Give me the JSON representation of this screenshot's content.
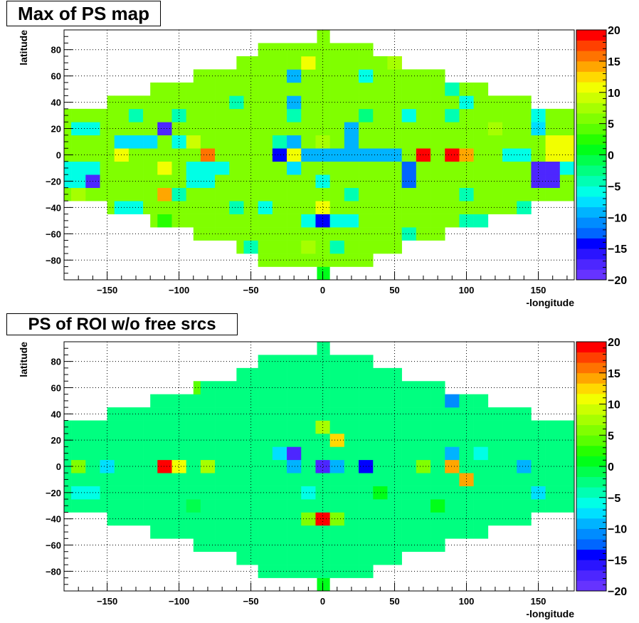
{
  "chart_data": [
    {
      "type": "heatmap",
      "title": "Max of PS map",
      "xlabel": "-longitude",
      "ylabel": "latitude",
      "xlim": [
        -180,
        175
      ],
      "ylim": [
        -95,
        95
      ],
      "x_ticks": [
        -150,
        -100,
        -50,
        0,
        50,
        100,
        150
      ],
      "y_ticks": [
        -80,
        -60,
        -40,
        -20,
        0,
        20,
        40,
        60,
        80
      ],
      "grid": true,
      "colorbar": {
        "min": -20,
        "max": 20,
        "ticks": [
          -20,
          -15,
          -10,
          -5,
          0,
          5,
          10,
          15,
          20
        ]
      },
      "base_value": 5,
      "cells": [
        {
          "x": 0,
          "y": 90,
          "v": 5
        },
        {
          "x": 0,
          "y": -90,
          "v": 1
        },
        {
          "x": -10,
          "y": 70,
          "v": 10
        },
        {
          "x": -20,
          "y": 60,
          "v": -10
        },
        {
          "x": 30,
          "y": 60,
          "v": -6
        },
        {
          "x": 50,
          "y": 70,
          "v": 7
        },
        {
          "x": -20,
          "y": 40,
          "v": -10
        },
        {
          "x": 90,
          "y": 50,
          "v": -5
        },
        {
          "x": 100,
          "y": 40,
          "v": -6
        },
        {
          "x": -130,
          "y": 30,
          "v": -4
        },
        {
          "x": -100,
          "y": 30,
          "v": -4
        },
        {
          "x": -60,
          "y": 40,
          "v": -4
        },
        {
          "x": -20,
          "y": 30,
          "v": -5
        },
        {
          "x": 30,
          "y": 30,
          "v": -3
        },
        {
          "x": 60,
          "y": 30,
          "v": -6
        },
        {
          "x": 90,
          "y": 30,
          "v": -4
        },
        {
          "x": 150,
          "y": 30,
          "v": -6
        },
        {
          "x": -170,
          "y": 20,
          "v": -6
        },
        {
          "x": -160,
          "y": 20,
          "v": -6
        },
        {
          "x": -110,
          "y": 20,
          "v": -17
        },
        {
          "x": 120,
          "y": 20,
          "v": 8
        },
        {
          "x": 150,
          "y": 20,
          "v": -7
        },
        {
          "x": -140,
          "y": 10,
          "v": -7
        },
        {
          "x": -130,
          "y": 10,
          "v": -7
        },
        {
          "x": -120,
          "y": 10,
          "v": -7
        },
        {
          "x": -100,
          "y": 10,
          "v": -6
        },
        {
          "x": -90,
          "y": 10,
          "v": 9
        },
        {
          "x": -30,
          "y": 10,
          "v": -5
        },
        {
          "x": -20,
          "y": 10,
          "v": -10
        },
        {
          "x": 0,
          "y": 10,
          "v": 7
        },
        {
          "x": 20,
          "y": 10,
          "v": -10
        },
        {
          "x": 20,
          "y": 20,
          "v": -10
        },
        {
          "x": 170,
          "y": 10,
          "v": 10
        },
        {
          "x": 160,
          "y": 10,
          "v": 10
        },
        {
          "x": -80,
          "y": 0,
          "v": 15
        },
        {
          "x": -140,
          "y": 0,
          "v": 10
        },
        {
          "x": -30,
          "y": 0,
          "v": -15
        },
        {
          "x": -20,
          "y": 0,
          "v": 10
        },
        {
          "x": -10,
          "y": 0,
          "v": -10
        },
        {
          "x": 0,
          "y": 0,
          "v": -10
        },
        {
          "x": 10,
          "y": 0,
          "v": -10
        },
        {
          "x": 20,
          "y": 0,
          "v": -10
        },
        {
          "x": 30,
          "y": 0,
          "v": -10
        },
        {
          "x": 40,
          "y": 0,
          "v": -10
        },
        {
          "x": 50,
          "y": 0,
          "v": -10
        },
        {
          "x": 70,
          "y": 0,
          "v": 19
        },
        {
          "x": 90,
          "y": 0,
          "v": 19
        },
        {
          "x": 100,
          "y": 0,
          "v": 14
        },
        {
          "x": 130,
          "y": 0,
          "v": -6
        },
        {
          "x": 140,
          "y": 0,
          "v": -6
        },
        {
          "x": 160,
          "y": 0,
          "v": 11
        },
        {
          "x": 170,
          "y": 0,
          "v": 11
        },
        {
          "x": -110,
          "y": -10,
          "v": 10
        },
        {
          "x": -180,
          "y": -10,
          "v": -6
        },
        {
          "x": -170,
          "y": -10,
          "v": -6
        },
        {
          "x": -160,
          "y": -10,
          "v": -6
        },
        {
          "x": -90,
          "y": -10,
          "v": -6
        },
        {
          "x": -80,
          "y": -10,
          "v": -6
        },
        {
          "x": -70,
          "y": -10,
          "v": -6
        },
        {
          "x": -20,
          "y": -10,
          "v": -8
        },
        {
          "x": 60,
          "y": -10,
          "v": -13
        },
        {
          "x": 150,
          "y": -10,
          "v": -18
        },
        {
          "x": 160,
          "y": -10,
          "v": -18
        },
        {
          "x": 170,
          "y": -10,
          "v": -6
        },
        {
          "x": -180,
          "y": -20,
          "v": -6
        },
        {
          "x": -170,
          "y": -20,
          "v": -6
        },
        {
          "x": -160,
          "y": -20,
          "v": -18
        },
        {
          "x": -90,
          "y": -20,
          "v": -6
        },
        {
          "x": -80,
          "y": -20,
          "v": -6
        },
        {
          "x": 0,
          "y": -20,
          "v": -6
        },
        {
          "x": 60,
          "y": -20,
          "v": -13
        },
        {
          "x": 150,
          "y": -20,
          "v": -18
        },
        {
          "x": 160,
          "y": -20,
          "v": -18
        },
        {
          "x": -170,
          "y": -30,
          "v": 8
        },
        {
          "x": -110,
          "y": -30,
          "v": 14
        },
        {
          "x": -100,
          "y": -30,
          "v": -4
        },
        {
          "x": 20,
          "y": -30,
          "v": -4
        },
        {
          "x": 100,
          "y": -30,
          "v": -4
        },
        {
          "x": -140,
          "y": -40,
          "v": -6
        },
        {
          "x": -130,
          "y": -40,
          "v": -6
        },
        {
          "x": -60,
          "y": -40,
          "v": -4
        },
        {
          "x": -40,
          "y": -40,
          "v": -6
        },
        {
          "x": 0,
          "y": -40,
          "v": 10
        },
        {
          "x": 140,
          "y": -40,
          "v": -5
        },
        {
          "x": -110,
          "y": -50,
          "v": 2
        },
        {
          "x": -10,
          "y": -50,
          "v": -6
        },
        {
          "x": 0,
          "y": -50,
          "v": -15
        },
        {
          "x": 10,
          "y": -50,
          "v": -6
        },
        {
          "x": 20,
          "y": -50,
          "v": -6
        },
        {
          "x": 100,
          "y": -50,
          "v": -5
        },
        {
          "x": 110,
          "y": -50,
          "v": -5
        },
        {
          "x": 60,
          "y": -60,
          "v": -5
        },
        {
          "x": -50,
          "y": -70,
          "v": -5
        },
        {
          "x": -10,
          "y": -70,
          "v": 7
        },
        {
          "x": 10,
          "y": -70,
          "v": -5
        }
      ]
    },
    {
      "type": "heatmap",
      "title": "PS of ROI w/o free srcs",
      "xlabel": "-longitude",
      "ylabel": "latitude",
      "xlim": [
        -180,
        175
      ],
      "ylim": [
        -95,
        95
      ],
      "x_ticks": [
        -150,
        -100,
        -50,
        0,
        50,
        100,
        150
      ],
      "y_ticks": [
        -80,
        -60,
        -40,
        -20,
        0,
        20,
        40,
        60,
        80
      ],
      "grid": true,
      "colorbar": {
        "min": -20,
        "max": 20,
        "ticks": [
          -20,
          -15,
          -10,
          -5,
          0,
          5,
          10,
          15,
          20
        ]
      },
      "base_value": -2,
      "cells": [
        {
          "x": 0,
          "y": 90,
          "v": -2
        },
        {
          "x": 0,
          "y": -90,
          "v": 1
        },
        {
          "x": -90,
          "y": 60,
          "v": 4
        },
        {
          "x": 90,
          "y": 50,
          "v": -11
        },
        {
          "x": 0,
          "y": 30,
          "v": 7
        },
        {
          "x": 10,
          "y": 20,
          "v": 12
        },
        {
          "x": -30,
          "y": 10,
          "v": -7
        },
        {
          "x": -20,
          "y": 10,
          "v": -17
        },
        {
          "x": 90,
          "y": 10,
          "v": -9
        },
        {
          "x": 110,
          "y": 10,
          "v": -6
        },
        {
          "x": -110,
          "y": 0,
          "v": 19
        },
        {
          "x": -100,
          "y": 0,
          "v": 10
        },
        {
          "x": -150,
          "y": 0,
          "v": -7
        },
        {
          "x": -170,
          "y": 0,
          "v": 6
        },
        {
          "x": -80,
          "y": 0,
          "v": 7
        },
        {
          "x": -20,
          "y": 0,
          "v": -10
        },
        {
          "x": 0,
          "y": 0,
          "v": -17
        },
        {
          "x": 10,
          "y": 0,
          "v": -10
        },
        {
          "x": 30,
          "y": 0,
          "v": -15
        },
        {
          "x": 70,
          "y": 0,
          "v": 6
        },
        {
          "x": 90,
          "y": 0,
          "v": 14
        },
        {
          "x": 140,
          "y": 0,
          "v": -10
        },
        {
          "x": 100,
          "y": -10,
          "v": 14
        },
        {
          "x": -170,
          "y": -20,
          "v": -6
        },
        {
          "x": -160,
          "y": -20,
          "v": -6
        },
        {
          "x": 150,
          "y": -20,
          "v": -7
        },
        {
          "x": -10,
          "y": -20,
          "v": -6
        },
        {
          "x": -10,
          "y": -40,
          "v": 6
        },
        {
          "x": 0,
          "y": -40,
          "v": 19
        },
        {
          "x": 10,
          "y": -40,
          "v": 5
        },
        {
          "x": -90,
          "y": -30,
          "v": -1
        },
        {
          "x": 40,
          "y": -20,
          "v": 1
        },
        {
          "x": 80,
          "y": -30,
          "v": 1
        }
      ]
    }
  ]
}
